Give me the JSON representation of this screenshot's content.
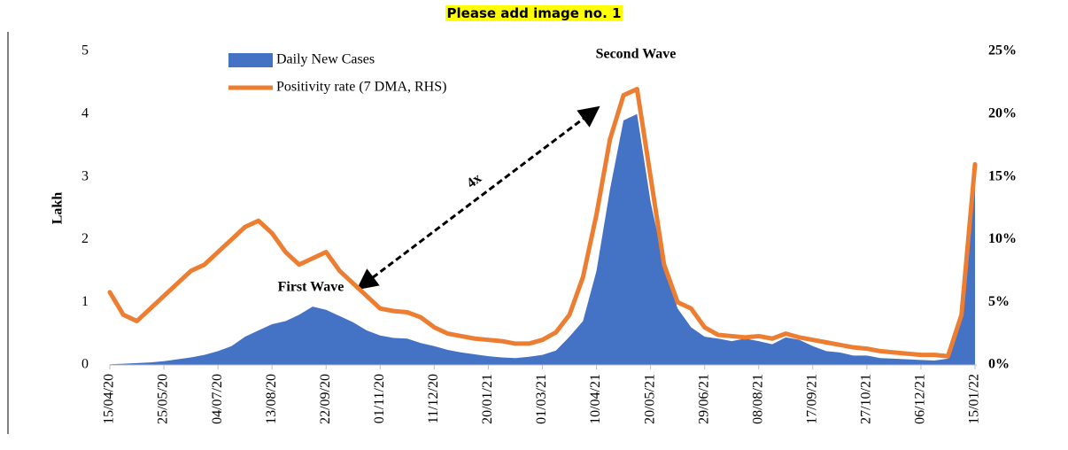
{
  "header": {
    "title": "Please add image no. 1"
  },
  "chart_data": {
    "type": "area-line",
    "ylabel": "Lakh",
    "annotations": [
      "Second Wave",
      "First Wave",
      "4x"
    ],
    "categories": [
      "15/04/20",
      null,
      null,
      null,
      "25/05/20",
      null,
      null,
      null,
      "04/07/20",
      null,
      null,
      null,
      "13/08/20",
      null,
      null,
      null,
      "22/09/20",
      null,
      null,
      null,
      "01/11/20",
      null,
      null,
      null,
      "11/12/20",
      null,
      null,
      null,
      "20/01/21",
      null,
      null,
      null,
      "01/03/21",
      null,
      null,
      null,
      "10/04/21",
      null,
      null,
      null,
      "20/05/21",
      null,
      null,
      null,
      "29/06/21",
      null,
      null,
      null,
      "08/08/21",
      null,
      null,
      null,
      "17/09/21",
      null,
      null,
      null,
      "27/10/21",
      null,
      null,
      null,
      "06/12/21",
      null,
      null,
      null,
      "15/01/22"
    ],
    "series": [
      {
        "name": "Daily New Cases",
        "color": "#4472c4",
        "kind": "area",
        "axis": "y",
        "values": [
          0.01,
          0.02,
          0.03,
          0.04,
          0.06,
          0.09,
          0.12,
          0.16,
          0.22,
          0.3,
          0.45,
          0.55,
          0.65,
          0.7,
          0.8,
          0.93,
          0.88,
          0.78,
          0.68,
          0.55,
          0.47,
          0.43,
          0.42,
          0.35,
          0.3,
          0.24,
          0.2,
          0.17,
          0.14,
          0.12,
          0.11,
          0.13,
          0.16,
          0.23,
          0.45,
          0.7,
          1.5,
          2.8,
          3.9,
          4.0,
          2.6,
          1.6,
          0.9,
          0.6,
          0.45,
          0.42,
          0.38,
          0.42,
          0.38,
          0.33,
          0.44,
          0.4,
          0.3,
          0.22,
          0.2,
          0.15,
          0.15,
          0.11,
          0.1,
          0.09,
          0.08,
          0.07,
          0.1,
          0.9,
          3.2
        ]
      },
      {
        "name": "Positivity rate (7 DMA, RHS)",
        "color": "#ed7d31",
        "kind": "line",
        "axis": "y2",
        "values": [
          5.8,
          4,
          3.5,
          4.5,
          5.5,
          6.5,
          7.5,
          8,
          9,
          10,
          11,
          11.5,
          10.5,
          9,
          8,
          8.5,
          9,
          7.5,
          6.5,
          5.5,
          4.5,
          4.3,
          4.2,
          3.8,
          3,
          2.5,
          2.3,
          2.1,
          2.0,
          1.9,
          1.7,
          1.7,
          2.0,
          2.6,
          4,
          7,
          12,
          18,
          21.5,
          22,
          15,
          8,
          5,
          4.5,
          3,
          2.4,
          2.3,
          2.2,
          2.3,
          2.1,
          2.5,
          2.2,
          2,
          1.8,
          1.6,
          1.4,
          1.3,
          1.1,
          1,
          0.9,
          0.8,
          0.8,
          0.7,
          4,
          16
        ]
      }
    ],
    "ylim": [
      0,
      5
    ],
    "yticks": [
      0,
      1,
      2,
      3,
      4,
      5
    ],
    "y2lim": [
      0,
      25
    ],
    "y2ticks": [
      {
        "value": 0,
        "label": "0%"
      },
      {
        "value": 5,
        "label": "5%"
      },
      {
        "value": 10,
        "label": "10%"
      },
      {
        "value": 15,
        "label": "15%"
      },
      {
        "value": 20,
        "label": "20%"
      },
      {
        "value": 25,
        "label": "25%"
      }
    ],
    "grid": false,
    "legend": "top-left"
  }
}
